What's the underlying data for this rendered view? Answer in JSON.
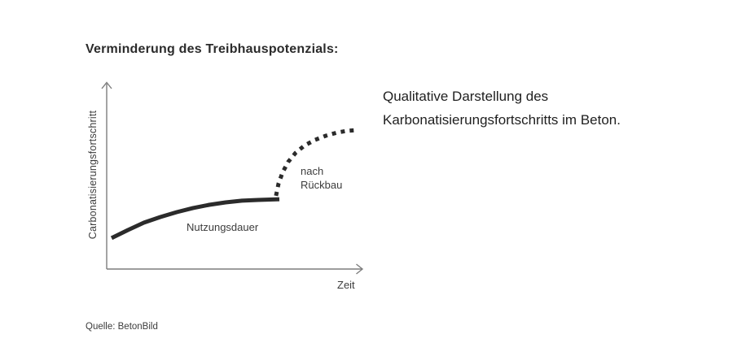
{
  "page": {
    "background": "#ffffff"
  },
  "title": "Verminderung des Treibhauspotenzials:",
  "caption": {
    "line1": "Qualitative Darstellung des",
    "line2": "Karbonatisierungsfortschritts im Beton."
  },
  "source": "Quelle: BetonBild",
  "chart": {
    "y_axis_label": "Carbonatisierungsfortschritt",
    "x_axis_label": "Zeit",
    "labels": {
      "solid": "Nutzungsdauer",
      "dotted_line1": "nach",
      "dotted_line2": "Rückbau"
    },
    "line_color": "#2b2b2b",
    "axis_color": "#7d7d7d"
  },
  "chart_data": {
    "type": "line",
    "title": "Verminderung des Treibhauspotenzials",
    "xlabel": "Zeit",
    "ylabel": "Carbonatisierungsfortschritt",
    "xlim": [
      0,
      1
    ],
    "ylim": [
      0,
      1
    ],
    "grid": false,
    "legend_position": "none",
    "annotations": [
      "Nutzungsdauer",
      "nach Rückbau"
    ],
    "series": [
      {
        "name": "Nutzungsdauer",
        "style": "solid",
        "x": [
          0.019,
          0.083,
          0.146,
          0.21,
          0.274,
          0.338,
          0.401,
          0.465,
          0.529,
          0.592,
          0.675
        ],
        "y": [
          0.165,
          0.208,
          0.247,
          0.277,
          0.303,
          0.325,
          0.342,
          0.355,
          0.364,
          0.368,
          0.372
        ]
      },
      {
        "name": "nach Rückbau",
        "style": "dotted",
        "x": [
          0.662,
          0.672,
          0.688,
          0.71,
          0.739,
          0.774,
          0.815,
          0.857,
          0.901,
          0.939,
          0.978
        ],
        "y": [
          0.39,
          0.455,
          0.515,
          0.571,
          0.619,
          0.658,
          0.688,
          0.71,
          0.727,
          0.736,
          0.74
        ]
      }
    ]
  }
}
